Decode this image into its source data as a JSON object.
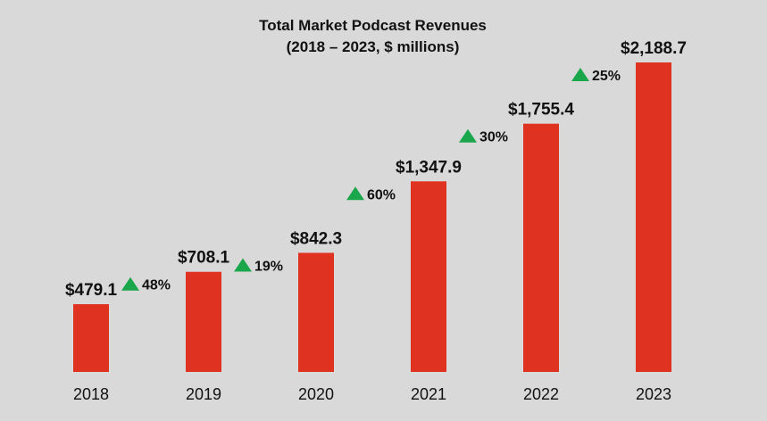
{
  "chart_data": {
    "type": "bar",
    "title": "Total Market Podcast Revenues",
    "subtitle": "(2018 – 2023, $ millions)",
    "categories": [
      "2018",
      "2019",
      "2020",
      "2021",
      "2022",
      "2023"
    ],
    "values": [
      479.1,
      708.1,
      842.3,
      1347.9,
      1755.4,
      2188.7
    ],
    "value_labels": [
      "$479.1",
      "$708.1",
      "$842.3",
      "$1,347.9",
      "$1,755.4",
      "$2,188.7"
    ],
    "growth_labels": [
      "48%",
      "19%",
      "60%",
      "30%",
      "25%"
    ],
    "ylim": [
      0,
      2188.7
    ],
    "grid": false,
    "colors": {
      "bar": "#e03220",
      "growth_arrow": "#1aa64a",
      "background": "#d9d9d9"
    }
  }
}
